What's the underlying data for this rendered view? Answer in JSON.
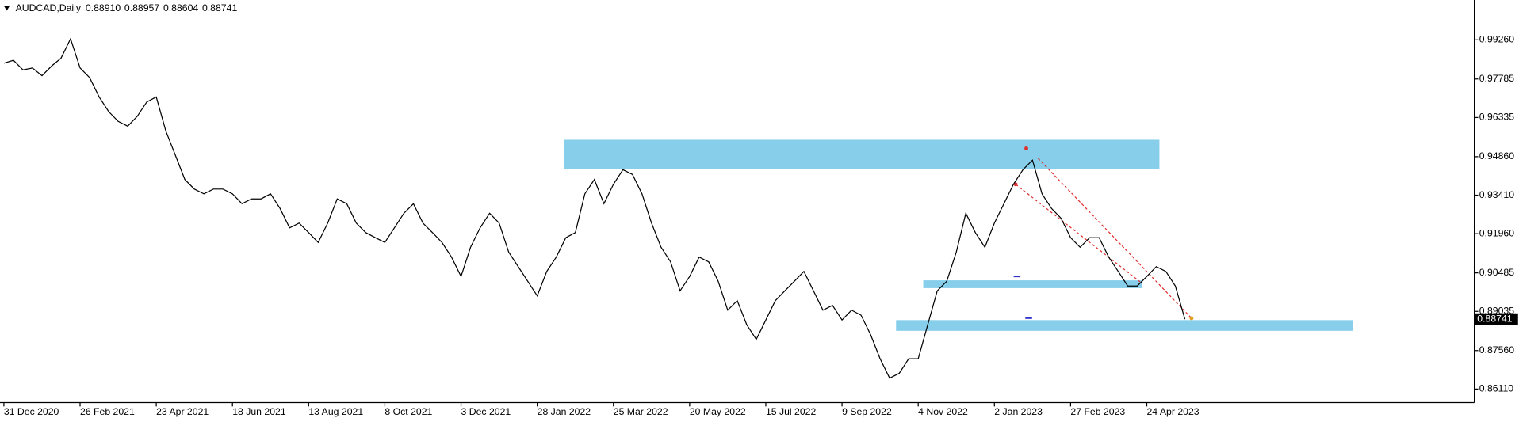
{
  "chart_data": {
    "type": "line",
    "title": "AUDCAD,Daily",
    "quote": [
      "0.88910",
      "0.88957",
      "0.88604",
      "0.88741"
    ],
    "last_price": {
      "value": 0.88741,
      "label": "0.88741"
    },
    "categories": [
      "31 Dec 2020",
      null,
      null,
      null,
      null,
      null,
      null,
      null,
      "26 Feb 2021",
      null,
      null,
      null,
      null,
      null,
      null,
      null,
      "23 Apr 2021",
      null,
      null,
      null,
      null,
      null,
      null,
      null,
      "18 Jun 2021",
      null,
      null,
      null,
      null,
      null,
      null,
      null,
      "13 Aug 2021",
      null,
      null,
      null,
      null,
      null,
      null,
      null,
      "8 Oct 2021",
      null,
      null,
      null,
      null,
      null,
      null,
      null,
      "3 Dec 2021",
      null,
      null,
      null,
      null,
      null,
      null,
      null,
      "28 Jan 2022",
      null,
      null,
      null,
      null,
      null,
      null,
      null,
      "25 Mar 2022",
      null,
      null,
      null,
      null,
      null,
      null,
      null,
      "20 May 2022",
      null,
      null,
      null,
      null,
      null,
      null,
      null,
      "15 Jul 2022",
      null,
      null,
      null,
      null,
      null,
      null,
      null,
      "9 Sep 2022",
      null,
      null,
      null,
      null,
      null,
      null,
      null,
      "4 Nov 2022",
      null,
      null,
      null,
      null,
      null,
      null,
      null,
      "2 Jan 2023",
      null,
      null,
      null,
      null,
      null,
      null,
      null,
      "27 Feb 2023",
      null,
      null,
      null,
      null,
      null,
      null,
      null,
      "24 Apr 2023",
      null,
      null,
      null,
      null
    ],
    "values": [
      0.9838,
      0.9849,
      0.9813,
      0.982,
      0.9791,
      0.9827,
      0.9857,
      0.993,
      0.982,
      0.9784,
      0.9711,
      0.9656,
      0.9619,
      0.9601,
      0.9638,
      0.9692,
      0.9711,
      0.9583,
      0.9492,
      0.94,
      0.9364,
      0.9346,
      0.9364,
      0.9364,
      0.9346,
      0.9309,
      0.9327,
      0.9327,
      0.9346,
      0.9291,
      0.9218,
      0.9236,
      0.92,
      0.9163,
      0.9236,
      0.9327,
      0.9309,
      0.9236,
      0.92,
      0.9181,
      0.9163,
      0.9218,
      0.9273,
      0.9309,
      0.9236,
      0.92,
      0.9163,
      0.9108,
      0.9035,
      0.9145,
      0.9218,
      0.9273,
      0.9236,
      0.9127,
      0.9072,
      0.9017,
      0.8962,
      0.9054,
      0.9108,
      0.9181,
      0.92,
      0.9346,
      0.94,
      0.9309,
      0.9382,
      0.9437,
      0.9419,
      0.9346,
      0.9236,
      0.9145,
      0.909,
      0.8981,
      0.9035,
      0.9108,
      0.909,
      0.9017,
      0.8908,
      0.8944,
      0.8853,
      0.8798,
      0.8871,
      0.8944,
      0.8981,
      0.9017,
      0.9054,
      0.8981,
      0.8908,
      0.8926,
      0.8871,
      0.8908,
      0.8889,
      0.8816,
      0.8725,
      0.8652,
      0.867,
      0.8725,
      0.8725,
      0.8853,
      0.8981,
      0.9017,
      0.9127,
      0.9273,
      0.92,
      0.9145,
      0.9236,
      0.9309,
      0.9382,
      0.9437,
      0.9473,
      0.9346,
      0.9291,
      0.9254,
      0.9181,
      0.9145,
      0.9181,
      0.9181,
      0.9108,
      0.9054,
      0.8999,
      0.8999,
      0.9035,
      0.9072,
      0.9054,
      0.8999,
      0.8874
    ],
    "color": "#000000",
    "ylim": [
      0.856,
      1.0065
    ],
    "yticks": [
      {
        "value": 0.9926,
        "label": "0.99260"
      },
      {
        "value": 0.97785,
        "label": "0.97785"
      },
      {
        "value": 0.96335,
        "label": "0.96335"
      },
      {
        "value": 0.9486,
        "label": "0.94860"
      },
      {
        "value": 0.9341,
        "label": "0.93410"
      },
      {
        "value": 0.9196,
        "label": "0.91960"
      },
      {
        "value": 0.90485,
        "label": "0.90485"
      },
      {
        "value": 0.89035,
        "label": "0.89035"
      },
      {
        "value": 0.8756,
        "label": "0.87560"
      },
      {
        "value": 0.8611,
        "label": "0.86110"
      }
    ],
    "grid": false
  }
}
